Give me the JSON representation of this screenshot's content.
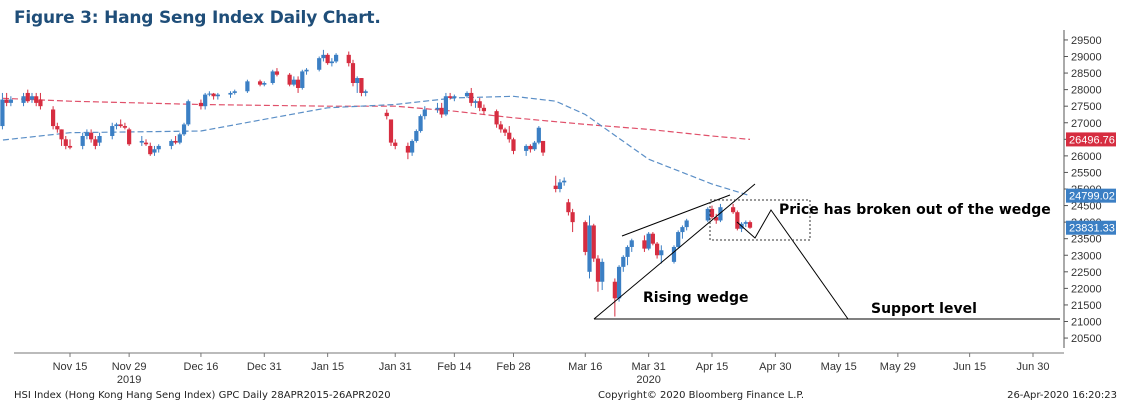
{
  "title": "Figure 3: Hang Seng Index Daily Chart.",
  "footer": {
    "left": "HSI Index (Hong Kong Hang Seng Index) GPC  Daily 28APR2015-26APR2020",
    "center": "Copyright© 2020 Bloomberg Finance L.P.",
    "right": "26-Apr-2020 16:20:23"
  },
  "colors": {
    "up": "#3b7fc4",
    "down": "#d62d40",
    "ma_short": "#e0506a",
    "ma_long": "#5b8fc7",
    "annotation": "#000000"
  },
  "chart_data": {
    "type": "candlestick",
    "title": "",
    "ylim": [
      20200,
      29800
    ],
    "y_ticks": [
      20500,
      21000,
      21500,
      22000,
      22500,
      23000,
      23500,
      24000,
      24500,
      25000,
      25500,
      26000,
      26500,
      27000,
      27500,
      28000,
      28500,
      29000,
      29500
    ],
    "x_ticks": [
      {
        "date": "2019-11-15",
        "label": "Nov 15"
      },
      {
        "date": "2019-11-29",
        "label": "Nov 29"
      },
      {
        "date": "2019-12-16",
        "label": "Dec 16"
      },
      {
        "date": "2019-12-31",
        "label": "Dec 31"
      },
      {
        "date": "2020-01-15",
        "label": "Jan 15"
      },
      {
        "date": "2020-01-31",
        "label": "Jan 31"
      },
      {
        "date": "2020-02-14",
        "label": "Feb 14"
      },
      {
        "date": "2020-02-28",
        "label": "Feb 28"
      },
      {
        "date": "2020-03-16",
        "label": "Mar 16"
      },
      {
        "date": "2020-03-31",
        "label": "Mar 31"
      },
      {
        "date": "2020-04-15",
        "label": "Apr 15"
      },
      {
        "date": "2020-04-30",
        "label": "Apr 30"
      },
      {
        "date": "2020-05-15",
        "label": "May 15"
      },
      {
        "date": "2020-05-29",
        "label": "May 29"
      },
      {
        "date": "2020-06-15",
        "label": "Jun 15"
      },
      {
        "date": "2020-06-30",
        "label": "Jun 30"
      }
    ],
    "year_labels": [
      {
        "date": "2019-11-29",
        "label": "2019"
      },
      {
        "date": "2020-03-31",
        "label": "2020"
      }
    ],
    "price_markers": [
      {
        "value": 26496.76,
        "label": "26496.76",
        "color": "#d62d40"
      },
      {
        "value": 24799.02,
        "label": "24799.02",
        "color": "#3b7fc4"
      },
      {
        "value": 23831.33,
        "label": "23831.33",
        "color": "#3b7fc4"
      }
    ],
    "candles": [
      {
        "date": "2019-10-28",
        "o": 26700,
        "h": 26900,
        "l": 26600,
        "c": 26800
      },
      {
        "date": "2019-10-30",
        "o": 26900,
        "h": 27900,
        "l": 26800,
        "c": 27700
      },
      {
        "date": "2019-10-31",
        "o": 27700,
        "h": 27900,
        "l": 27500,
        "c": 27600
      },
      {
        "date": "2019-11-01",
        "o": 27600,
        "h": 27800,
        "l": 27500,
        "c": 27700
      },
      {
        "date": "2019-11-04",
        "o": 27600,
        "h": 27900,
        "l": 27500,
        "c": 27800
      },
      {
        "date": "2019-11-05",
        "o": 27900,
        "h": 28000,
        "l": 27600,
        "c": 27650
      },
      {
        "date": "2019-11-06",
        "o": 27700,
        "h": 27900,
        "l": 27600,
        "c": 27800
      },
      {
        "date": "2019-11-07",
        "o": 27800,
        "h": 27900,
        "l": 27500,
        "c": 27600
      },
      {
        "date": "2019-11-08",
        "o": 27700,
        "h": 27900,
        "l": 27400,
        "c": 27500
      },
      {
        "date": "2019-11-11",
        "o": 27400,
        "h": 27500,
        "l": 26800,
        "c": 26900
      },
      {
        "date": "2019-11-12",
        "o": 26900,
        "h": 27000,
        "l": 26700,
        "c": 26800
      },
      {
        "date": "2019-11-13",
        "o": 26800,
        "h": 26800,
        "l": 26300,
        "c": 26500
      },
      {
        "date": "2019-11-14",
        "o": 26500,
        "h": 26600,
        "l": 26200,
        "c": 26300
      },
      {
        "date": "2019-11-15",
        "o": 26300,
        "h": 26500,
        "l": 26200,
        "c": 26250
      },
      {
        "date": "2019-11-18",
        "o": 26300,
        "h": 26700,
        "l": 26200,
        "c": 26600
      },
      {
        "date": "2019-11-19",
        "o": 26600,
        "h": 26800,
        "l": 26500,
        "c": 26700
      },
      {
        "date": "2019-11-20",
        "o": 26700,
        "h": 26800,
        "l": 26400,
        "c": 26500
      },
      {
        "date": "2019-11-21",
        "o": 26500,
        "h": 26600,
        "l": 26200,
        "c": 26300
      },
      {
        "date": "2019-11-22",
        "o": 26400,
        "h": 26700,
        "l": 26300,
        "c": 26600
      },
      {
        "date": "2019-11-25",
        "o": 26600,
        "h": 27000,
        "l": 26500,
        "c": 26900
      },
      {
        "date": "2019-11-26",
        "o": 26900,
        "h": 27000,
        "l": 26800,
        "c": 26950
      },
      {
        "date": "2019-11-27",
        "o": 26950,
        "h": 27100,
        "l": 26850,
        "c": 26900
      },
      {
        "date": "2019-11-28",
        "o": 26900,
        "h": 27000,
        "l": 26800,
        "c": 26850
      },
      {
        "date": "2019-11-29",
        "o": 26800,
        "h": 26850,
        "l": 26300,
        "c": 26350
      },
      {
        "date": "2019-12-02",
        "o": 26400,
        "h": 26600,
        "l": 26300,
        "c": 26450
      },
      {
        "date": "2019-12-03",
        "o": 26400,
        "h": 26500,
        "l": 26300,
        "c": 26350
      },
      {
        "date": "2019-12-04",
        "o": 26300,
        "h": 26400,
        "l": 26000,
        "c": 26050
      },
      {
        "date": "2019-12-05",
        "o": 26100,
        "h": 26300,
        "l": 26000,
        "c": 26200
      },
      {
        "date": "2019-12-06",
        "o": 26200,
        "h": 26350,
        "l": 26100,
        "c": 26300
      },
      {
        "date": "2019-12-09",
        "o": 26300,
        "h": 26500,
        "l": 26200,
        "c": 26450
      },
      {
        "date": "2019-12-10",
        "o": 26450,
        "h": 26600,
        "l": 26350,
        "c": 26400
      },
      {
        "date": "2019-12-11",
        "o": 26400,
        "h": 26700,
        "l": 26350,
        "c": 26650
      },
      {
        "date": "2019-12-12",
        "o": 26650,
        "h": 27000,
        "l": 26600,
        "c": 26950
      },
      {
        "date": "2019-12-13",
        "o": 26950,
        "h": 27700,
        "l": 26900,
        "c": 27650
      },
      {
        "date": "2019-12-16",
        "o": 27600,
        "h": 27700,
        "l": 27400,
        "c": 27500
      },
      {
        "date": "2019-12-17",
        "o": 27500,
        "h": 27900,
        "l": 27400,
        "c": 27850
      },
      {
        "date": "2019-12-18",
        "o": 27850,
        "h": 27950,
        "l": 27800,
        "c": 27880
      },
      {
        "date": "2019-12-19",
        "o": 27880,
        "h": 27900,
        "l": 27700,
        "c": 27800
      },
      {
        "date": "2019-12-20",
        "o": 27800,
        "h": 27900,
        "l": 27700,
        "c": 27850
      },
      {
        "date": "2019-12-23",
        "o": 27850,
        "h": 27950,
        "l": 27750,
        "c": 27900
      },
      {
        "date": "2019-12-24",
        "o": 27900,
        "h": 28000,
        "l": 27850,
        "c": 27950
      },
      {
        "date": "2019-12-27",
        "o": 27950,
        "h": 28300,
        "l": 27900,
        "c": 28250
      },
      {
        "date": "2019-12-30",
        "o": 28250,
        "h": 28300,
        "l": 28100,
        "c": 28150
      },
      {
        "date": "2019-12-31",
        "o": 28150,
        "h": 28250,
        "l": 28100,
        "c": 28200
      },
      {
        "date": "2020-01-02",
        "o": 28200,
        "h": 28600,
        "l": 28150,
        "c": 28550
      },
      {
        "date": "2020-01-03",
        "o": 28550,
        "h": 28650,
        "l": 28400,
        "c": 28450
      },
      {
        "date": "2020-01-06",
        "o": 28450,
        "h": 28500,
        "l": 28100,
        "c": 28150
      },
      {
        "date": "2020-01-07",
        "o": 28150,
        "h": 28400,
        "l": 28100,
        "c": 28300
      },
      {
        "date": "2020-01-08",
        "o": 28300,
        "h": 28400,
        "l": 27900,
        "c": 28050
      },
      {
        "date": "2020-01-09",
        "o": 28050,
        "h": 28600,
        "l": 28000,
        "c": 28550
      },
      {
        "date": "2020-01-10",
        "o": 28550,
        "h": 28650,
        "l": 28450,
        "c": 28600
      },
      {
        "date": "2020-01-13",
        "o": 28600,
        "h": 29000,
        "l": 28550,
        "c": 28950
      },
      {
        "date": "2020-01-14",
        "o": 28950,
        "h": 29200,
        "l": 28850,
        "c": 29050
      },
      {
        "date": "2020-01-15",
        "o": 29050,
        "h": 29100,
        "l": 28750,
        "c": 28800
      },
      {
        "date": "2020-01-16",
        "o": 28800,
        "h": 28950,
        "l": 28700,
        "c": 28850
      },
      {
        "date": "2020-01-17",
        "o": 28850,
        "h": 29100,
        "l": 28800,
        "c": 29050
      },
      {
        "date": "2020-01-20",
        "o": 29050,
        "h": 29150,
        "l": 28700,
        "c": 28800
      },
      {
        "date": "2020-01-21",
        "o": 28800,
        "h": 28900,
        "l": 28100,
        "c": 28200
      },
      {
        "date": "2020-01-22",
        "o": 28200,
        "h": 28400,
        "l": 27900,
        "c": 28350
      },
      {
        "date": "2020-01-23",
        "o": 28350,
        "h": 28350,
        "l": 27800,
        "c": 27900
      },
      {
        "date": "2020-01-24",
        "o": 27900,
        "h": 28000,
        "l": 27800,
        "c": 27950
      },
      {
        "date": "2020-01-29",
        "o": 27300,
        "h": 27400,
        "l": 27100,
        "c": 27200
      },
      {
        "date": "2020-01-30",
        "o": 27100,
        "h": 27100,
        "l": 26300,
        "c": 26400
      },
      {
        "date": "2020-01-31",
        "o": 26400,
        "h": 26500,
        "l": 26200,
        "c": 26300
      },
      {
        "date": "2020-02-03",
        "o": 26300,
        "h": 26400,
        "l": 25900,
        "c": 26100
      },
      {
        "date": "2020-02-04",
        "o": 26100,
        "h": 26500,
        "l": 26000,
        "c": 26450
      },
      {
        "date": "2020-02-05",
        "o": 26450,
        "h": 26800,
        "l": 26400,
        "c": 26750
      },
      {
        "date": "2020-02-06",
        "o": 26750,
        "h": 27250,
        "l": 26700,
        "c": 27200
      },
      {
        "date": "2020-02-07",
        "o": 27200,
        "h": 27500,
        "l": 27100,
        "c": 27400
      },
      {
        "date": "2020-02-10",
        "o": 27400,
        "h": 27600,
        "l": 27300,
        "c": 27450
      },
      {
        "date": "2020-02-11",
        "o": 27450,
        "h": 27600,
        "l": 27150,
        "c": 27250
      },
      {
        "date": "2020-02-12",
        "o": 27250,
        "h": 27900,
        "l": 27200,
        "c": 27800
      },
      {
        "date": "2020-02-13",
        "o": 27800,
        "h": 27900,
        "l": 27700,
        "c": 27750
      },
      {
        "date": "2020-02-14",
        "o": 27750,
        "h": 27850,
        "l": 27650,
        "c": 27800
      },
      {
        "date": "2020-02-17",
        "o": 27800,
        "h": 27950,
        "l": 27750,
        "c": 27900
      },
      {
        "date": "2020-02-18",
        "o": 27900,
        "h": 28050,
        "l": 27500,
        "c": 27600
      },
      {
        "date": "2020-02-19",
        "o": 27600,
        "h": 27700,
        "l": 27450,
        "c": 27650
      },
      {
        "date": "2020-02-20",
        "o": 27650,
        "h": 27750,
        "l": 27350,
        "c": 27450
      },
      {
        "date": "2020-02-21",
        "o": 27450,
        "h": 27550,
        "l": 27250,
        "c": 27350
      },
      {
        "date": "2020-02-24",
        "o": 27350,
        "h": 27400,
        "l": 26850,
        "c": 26950
      },
      {
        "date": "2020-02-25",
        "o": 26950,
        "h": 27050,
        "l": 26700,
        "c": 26800
      },
      {
        "date": "2020-02-26",
        "o": 26800,
        "h": 26850,
        "l": 26600,
        "c": 26700
      },
      {
        "date": "2020-02-27",
        "o": 26700,
        "h": 26900,
        "l": 26400,
        "c": 26500
      },
      {
        "date": "2020-02-28",
        "o": 26500,
        "h": 26550,
        "l": 26050,
        "c": 26150
      },
      {
        "date": "2020-03-02",
        "o": 26150,
        "h": 26350,
        "l": 26000,
        "c": 26300
      },
      {
        "date": "2020-03-03",
        "o": 26300,
        "h": 26350,
        "l": 26100,
        "c": 26200
      },
      {
        "date": "2020-03-04",
        "o": 26200,
        "h": 26450,
        "l": 26150,
        "c": 26400
      },
      {
        "date": "2020-03-05",
        "o": 26400,
        "h": 26900,
        "l": 26350,
        "c": 26850
      },
      {
        "date": "2020-03-06",
        "o": 26450,
        "h": 26450,
        "l": 26000,
        "c": 26100
      },
      {
        "date": "2020-03-09",
        "o": 25100,
        "h": 25400,
        "l": 24900,
        "c": 25000
      },
      {
        "date": "2020-03-10",
        "o": 25000,
        "h": 25300,
        "l": 24900,
        "c": 25200
      },
      {
        "date": "2020-03-11",
        "o": 25200,
        "h": 25350,
        "l": 25100,
        "c": 25250
      },
      {
        "date": "2020-03-12",
        "o": 24600,
        "h": 24700,
        "l": 24200,
        "c": 24300
      },
      {
        "date": "2020-03-13",
        "o": 24300,
        "h": 24400,
        "l": 23700,
        "c": 24000
      },
      {
        "date": "2020-03-16",
        "o": 24000,
        "h": 24050,
        "l": 23000,
        "c": 23100
      },
      {
        "date": "2020-03-17",
        "o": 22500,
        "h": 24200,
        "l": 22300,
        "c": 23900
      },
      {
        "date": "2020-03-18",
        "o": 23900,
        "h": 23950,
        "l": 22800,
        "c": 22900
      },
      {
        "date": "2020-03-19",
        "o": 22900,
        "h": 23000,
        "l": 21900,
        "c": 22200
      },
      {
        "date": "2020-03-20",
        "o": 22200,
        "h": 22900,
        "l": 21950,
        "c": 22800
      },
      {
        "date": "2020-03-23",
        "o": 22200,
        "h": 22300,
        "l": 21150,
        "c": 21700
      },
      {
        "date": "2020-03-24",
        "o": 21700,
        "h": 22700,
        "l": 21600,
        "c": 22650
      },
      {
        "date": "2020-03-25",
        "o": 22650,
        "h": 23000,
        "l": 22500,
        "c": 22950
      },
      {
        "date": "2020-03-26",
        "o": 22950,
        "h": 23300,
        "l": 22700,
        "c": 23250
      },
      {
        "date": "2020-03-27",
        "o": 23250,
        "h": 23500,
        "l": 23100,
        "c": 23450
      },
      {
        "date": "2020-03-30",
        "o": 23450,
        "h": 23600,
        "l": 23100,
        "c": 23200
      },
      {
        "date": "2020-03-31",
        "o": 23200,
        "h": 23700,
        "l": 23150,
        "c": 23650
      },
      {
        "date": "2020-04-01",
        "o": 23650,
        "h": 23700,
        "l": 23300,
        "c": 23350
      },
      {
        "date": "2020-04-02",
        "o": 23350,
        "h": 23400,
        "l": 22900,
        "c": 23000
      },
      {
        "date": "2020-04-03",
        "o": 23000,
        "h": 23300,
        "l": 22750,
        "c": 23150
      },
      {
        "date": "2020-04-06",
        "o": 22800,
        "h": 23300,
        "l": 22750,
        "c": 23250
      },
      {
        "date": "2020-04-07",
        "o": 23250,
        "h": 23750,
        "l": 23200,
        "c": 23700
      },
      {
        "date": "2020-04-08",
        "o": 23700,
        "h": 23900,
        "l": 23500,
        "c": 23850
      },
      {
        "date": "2020-04-09",
        "o": 23850,
        "h": 24100,
        "l": 23750,
        "c": 24050
      },
      {
        "date": "2020-04-14",
        "o": 24050,
        "h": 24450,
        "l": 24000,
        "c": 24400
      },
      {
        "date": "2020-04-15",
        "o": 24400,
        "h": 24500,
        "l": 24100,
        "c": 24150
      },
      {
        "date": "2020-04-16",
        "o": 24150,
        "h": 24250,
        "l": 23950,
        "c": 24050
      },
      {
        "date": "2020-04-17",
        "o": 24050,
        "h": 24550,
        "l": 24000,
        "c": 24450
      },
      {
        "date": "2020-04-20",
        "o": 24450,
        "h": 24550,
        "l": 24250,
        "c": 24300
      },
      {
        "date": "2020-04-21",
        "o": 24300,
        "h": 24350,
        "l": 23750,
        "c": 23800
      },
      {
        "date": "2020-04-22",
        "o": 23800,
        "h": 24000,
        "l": 23700,
        "c": 23950
      },
      {
        "date": "2020-04-23",
        "o": 23950,
        "h": 24050,
        "l": 23850,
        "c": 24000
      },
      {
        "date": "2020-04-24",
        "o": 24000,
        "h": 24050,
        "l": 23800,
        "c": 23831.33
      }
    ],
    "series": [
      {
        "name": "",
        "color": "#e0506a",
        "points": [
          [
            "2019-10-28",
            27750
          ],
          [
            "2019-11-15",
            27650
          ],
          [
            "2019-12-16",
            27550
          ],
          [
            "2020-01-15",
            27500
          ],
          [
            "2020-01-31",
            27500
          ],
          [
            "2020-02-14",
            27350
          ],
          [
            "2020-02-28",
            27150
          ],
          [
            "2020-03-16",
            26950
          ],
          [
            "2020-03-31",
            26800
          ],
          [
            "2020-04-15",
            26600
          ],
          [
            "2020-04-24",
            26496.76
          ]
        ]
      },
      {
        "name": "",
        "color": "#5b8fc7",
        "points": [
          [
            "2019-10-28",
            26450
          ],
          [
            "2019-11-15",
            26700
          ],
          [
            "2019-12-16",
            26750
          ],
          [
            "2020-01-02",
            27150
          ],
          [
            "2020-01-15",
            27450
          ],
          [
            "2020-01-31",
            27550
          ],
          [
            "2020-02-14",
            27750
          ],
          [
            "2020-02-28",
            27800
          ],
          [
            "2020-03-09",
            27650
          ],
          [
            "2020-03-16",
            27250
          ],
          [
            "2020-03-31",
            25900
          ],
          [
            "2020-04-15",
            25150
          ],
          [
            "2020-04-24",
            24799.02
          ]
        ]
      }
    ],
    "annotations": {
      "rising_wedge": "Rising wedge",
      "breakout": "Price has broken out of the wedge",
      "support": "Support level"
    }
  }
}
